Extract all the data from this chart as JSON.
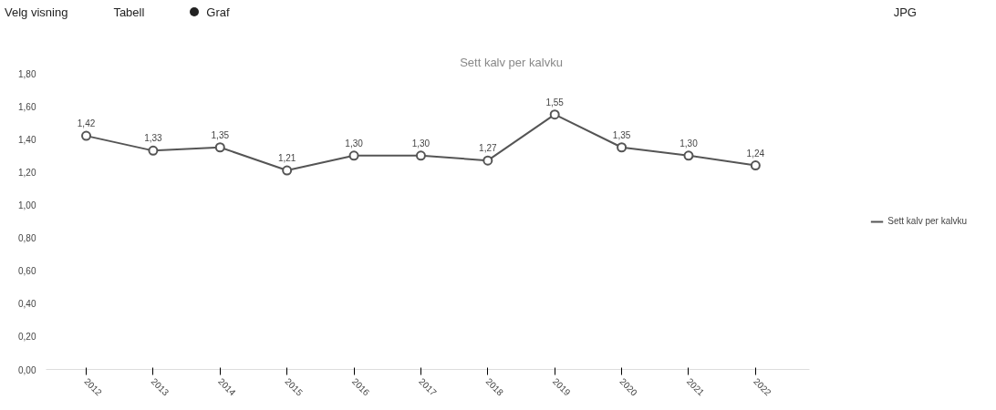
{
  "chart_data": {
    "type": "line",
    "title": "Sett kalv per kalvku",
    "annotations": [
      "Velg visning",
      "Tabell",
      "Graf",
      "JPG"
    ],
    "categories": [
      "2012",
      "2013",
      "2014",
      "2015",
      "2016",
      "2017",
      "2018",
      "2019",
      "2020",
      "2021",
      "2022"
    ],
    "series": [
      {
        "name": "Sett kalv per kalvku",
        "color": "#555555",
        "values": [
          1.42,
          1.33,
          1.35,
          1.21,
          1.3,
          1.3,
          1.27,
          1.55,
          1.35,
          1.3,
          1.24
        ],
        "value_labels": [
          "1,42",
          "1,33",
          "1,35",
          "1,21",
          "1,30",
          "1,30",
          "1,27",
          "1,55",
          "1,35",
          "1,30",
          "1,24"
        ]
      }
    ],
    "ylim": [
      0,
      1.8
    ],
    "yticks": [
      {
        "value": 0,
        "label": "0,00"
      },
      {
        "value": 0.2,
        "label": "0,20"
      },
      {
        "value": 0.4,
        "label": "0,40"
      },
      {
        "value": 0.6,
        "label": "0,60"
      },
      {
        "value": 0.8,
        "label": "0,80"
      },
      {
        "value": 1.0,
        "label": "1,00"
      },
      {
        "value": 1.2,
        "label": "1,20"
      },
      {
        "value": 1.4,
        "label": "1,40"
      },
      {
        "value": 1.6,
        "label": "1,60"
      },
      {
        "value": 1.8,
        "label": "1,80"
      }
    ],
    "grid": false,
    "legend": "right",
    "marker": "circle",
    "line_style": "solid"
  }
}
